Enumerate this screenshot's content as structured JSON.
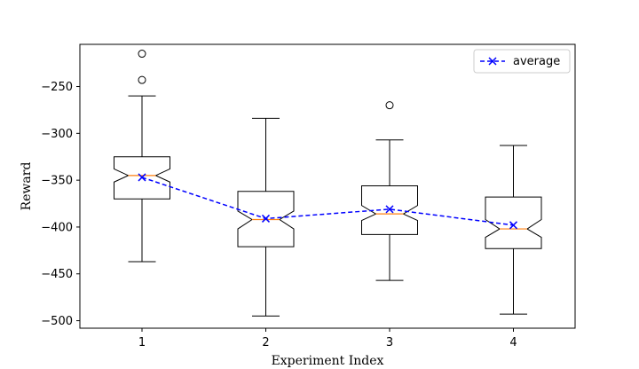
{
  "chart_data": {
    "type": "box",
    "xlabel": "Experiment Index",
    "ylabel": "Reward",
    "categories": [
      "1",
      "2",
      "3",
      "4"
    ],
    "ylim": [
      -508,
      -205
    ],
    "yticks": [
      -500,
      -450,
      -400,
      -350,
      -300,
      -250
    ],
    "ytick_labels": [
      "−500",
      "−450",
      "−400",
      "−350",
      "−300",
      "−250"
    ],
    "boxes": [
      {
        "category": "1",
        "whisker_low": -437,
        "q1": -370,
        "median": -345,
        "notch_low": -352,
        "notch_high": -338,
        "q3": -325,
        "whisker_high": -260,
        "outliers": [
          -215,
          -243
        ]
      },
      {
        "category": "2",
        "whisker_low": -495,
        "q1": -421,
        "median": -392,
        "notch_low": -402,
        "notch_high": -383,
        "q3": -362,
        "whisker_high": -284,
        "outliers": []
      },
      {
        "category": "3",
        "whisker_low": -457,
        "q1": -408,
        "median": -386,
        "notch_low": -393,
        "notch_high": -377,
        "q3": -356,
        "whisker_high": -307,
        "outliers": [
          -270
        ]
      },
      {
        "category": "4",
        "whisker_low": -493,
        "q1": -423,
        "median": -402,
        "notch_low": -411,
        "notch_high": -392,
        "q3": -368,
        "whisker_high": -313,
        "outliers": []
      }
    ],
    "series": [
      {
        "name": "average",
        "style": "dashed",
        "marker": "x",
        "color": "#0000ff",
        "values": [
          -347,
          -391,
          -381,
          -398
        ]
      }
    ],
    "legend_position": "top-right",
    "grid": false,
    "colors": {
      "box": "#000000",
      "median": "#ff7f0e",
      "average": "#0000ff"
    }
  }
}
